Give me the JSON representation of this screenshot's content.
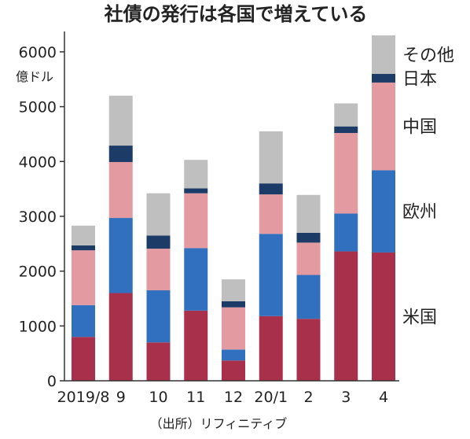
{
  "chart_data": {
    "type": "bar",
    "stacked": true,
    "title": "社債の発行は各国で増えている",
    "unit_label": "億ドル",
    "source": "（出所）リフィニティブ",
    "categories": [
      "2019/8",
      "9",
      "10",
      "11",
      "12",
      "20/1",
      "2",
      "3",
      "4"
    ],
    "ylim": [
      0,
      6300
    ],
    "yticks": [
      0,
      1000,
      2000,
      3000,
      4000,
      5000,
      6000
    ],
    "grid": false,
    "legend_placement": "right, labels beside the last bar",
    "series": [
      {
        "name": "米国",
        "color": "#a8304a",
        "values": [
          800,
          1600,
          700,
          1280,
          370,
          1180,
          1130,
          2360,
          2340
        ]
      },
      {
        "name": "欧州",
        "color": "#3070be",
        "values": [
          580,
          1370,
          950,
          1140,
          200,
          1500,
          800,
          690,
          1500
        ]
      },
      {
        "name": "中国",
        "color": "#e39aa0",
        "values": [
          1000,
          1020,
          760,
          1000,
          770,
          720,
          590,
          1470,
          1600
        ]
      },
      {
        "name": "日本",
        "color": "#1c3b66",
        "values": [
          90,
          300,
          240,
          90,
          110,
          200,
          180,
          120,
          160
        ]
      },
      {
        "name": "その他",
        "color": "#bfbfbf",
        "values": [
          360,
          910,
          770,
          520,
          400,
          950,
          690,
          420,
          700
        ]
      }
    ]
  }
}
